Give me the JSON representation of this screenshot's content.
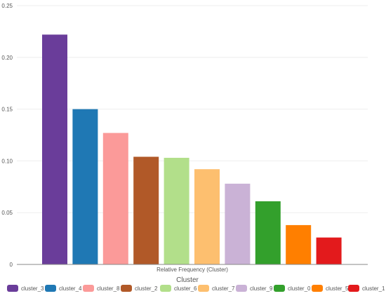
{
  "chart_data": {
    "type": "bar",
    "categories": [
      "cluster_3",
      "cluster_4",
      "cluster_8",
      "cluster_2",
      "cluster_6",
      "cluster_7",
      "cluster_9",
      "cluster_0",
      "cluster_5",
      "cluster_1"
    ],
    "values": [
      0.222,
      0.15,
      0.127,
      0.104,
      0.103,
      0.092,
      0.078,
      0.061,
      0.038,
      0.026
    ],
    "colors": [
      "#6a3d9a",
      "#1f78b4",
      "#fb9a99",
      "#b15928",
      "#b2df8a",
      "#fdbf6f",
      "#cab2d6",
      "#33a02c",
      "#ff7f00",
      "#e31a1c"
    ],
    "yticks": [
      "0",
      "0.05",
      "0.10",
      "0.15",
      "0.20",
      "0.25"
    ],
    "ylim": [
      0,
      0.25
    ],
    "xlabel": "Relative Frequency (Cluster)",
    "ylabel": "",
    "legend_title": "Cluster",
    "legend_position": "bottom",
    "grid": true
  }
}
